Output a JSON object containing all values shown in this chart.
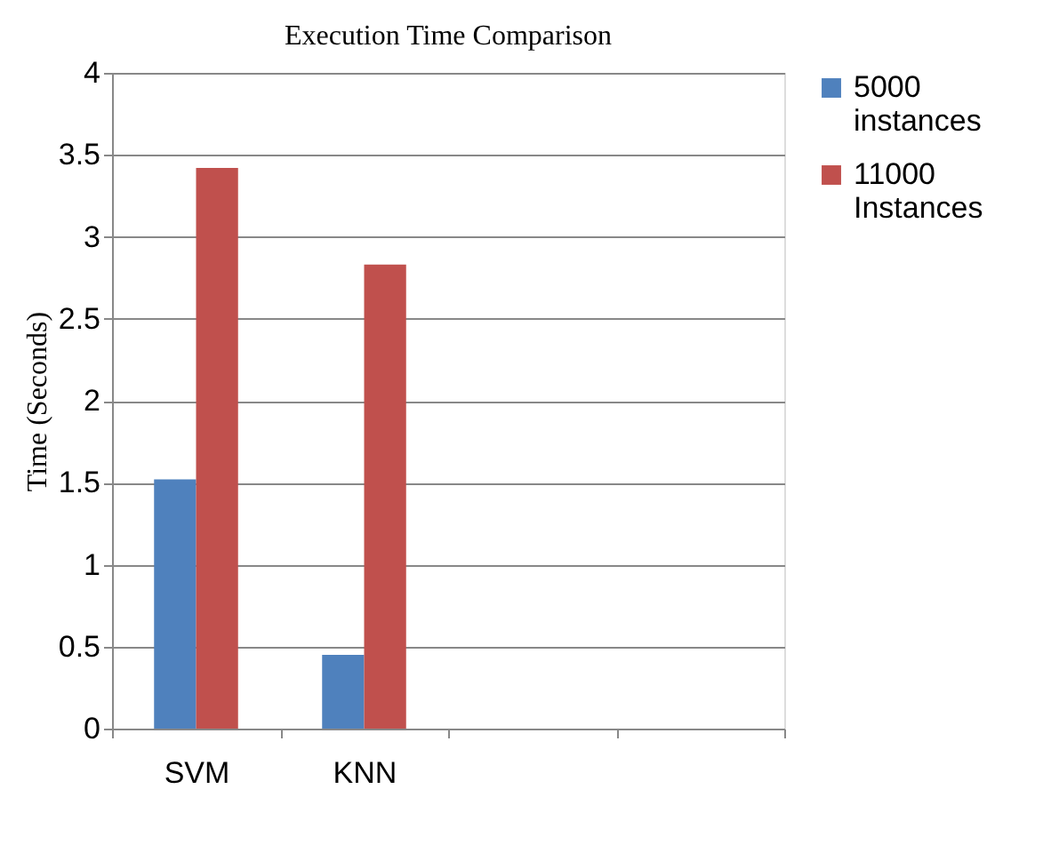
{
  "chart_data": {
    "type": "bar",
    "title": "Execution Time Comparison",
    "ylabel": "Time (Seconds)",
    "categories": [
      "SVM",
      "KNN",
      null,
      null
    ],
    "series": [
      {
        "name": "5000 instances",
        "color": "#4f81bd",
        "values": [
          1.52,
          0.45,
          null,
          null
        ]
      },
      {
        "name": "11000 Instances",
        "color": "#c0504d",
        "values": [
          3.42,
          2.83,
          null,
          null
        ]
      }
    ],
    "ylim": [
      0,
      4
    ],
    "yticks": [
      0,
      0.5,
      1,
      1.5,
      2,
      2.5,
      3,
      3.5,
      4
    ],
    "grid": "y",
    "legend": "right"
  }
}
